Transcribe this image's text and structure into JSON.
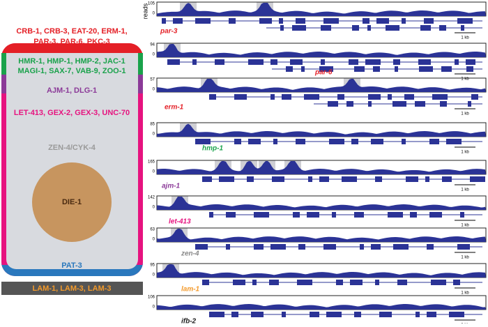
{
  "cell": {
    "apical_lines": [
      "CRB-1, CRB-3, EAT-20, ERM-1,",
      "PAR-3, PAR-6, PKC-3"
    ],
    "junction_lines": [
      "HMR-1, HMP-1, HMP-2, JAC-1",
      "MAGI-1, SAX-7, VAB-9, ZOO-1"
    ],
    "ajm": "AJM-1, DLG-1",
    "lateral": "LET-413, GEX-2, GEX-3, UNC-70",
    "midbody": "ZEN-4/CYK-4",
    "nucleus": "DIE-1",
    "basal": "PAT-3",
    "lamina": "LAM-1, LAM-3, LAM-3"
  },
  "tracks": {
    "axis_label": "reads",
    "scale": "1 kb",
    "items": [
      {
        "gene": "par-3",
        "max": 105,
        "min": 0
      },
      {
        "gene": "par-6",
        "max": 94,
        "min": 0
      },
      {
        "gene": "erm-1",
        "max": 57,
        "min": 0
      },
      {
        "gene": "hmp-1",
        "max": 85,
        "min": 0
      },
      {
        "gene": "ajm-1",
        "max": 165,
        "min": 0
      },
      {
        "gene": "let-413",
        "max": 142,
        "min": 0
      },
      {
        "gene": "zen-4",
        "max": 63,
        "min": 0
      },
      {
        "gene": "lam-1",
        "max": 95,
        "min": 0
      },
      {
        "gene": "ifb-2",
        "max": 106,
        "min": 0
      }
    ]
  }
}
